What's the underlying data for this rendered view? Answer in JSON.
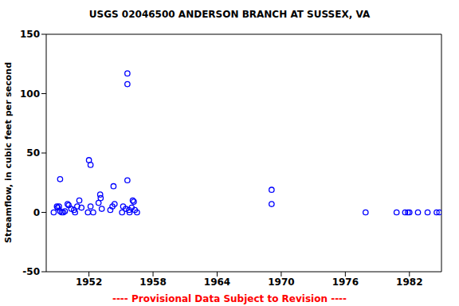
{
  "chart_data": {
    "type": "scatter",
    "title": "USGS 02046500 ANDERSON BRANCH AT SUSSEX, VA",
    "ylabel": "Streamflow, in cubic feet per second",
    "annotations": [
      "---- Provisional Data Subject to Revision ----"
    ],
    "x": [
      1948.7,
      1949.0,
      1949.07,
      1949.2,
      1949.3,
      1949.3,
      1949.45,
      1949.6,
      1949.75,
      1950.0,
      1950.1,
      1950.35,
      1950.6,
      1950.7,
      1950.9,
      1951.1,
      1951.3,
      1951.9,
      1952.0,
      1952.15,
      1952.15,
      1952.4,
      1952.9,
      1953.05,
      1953.1,
      1953.2,
      1954.0,
      1954.2,
      1954.3,
      1954.4,
      1955.1,
      1955.2,
      1955.45,
      1955.6,
      1955.6,
      1955.6,
      1955.75,
      1955.8,
      1956.0,
      1956.1,
      1956.2,
      1956.3,
      1956.5,
      1969.1,
      1969.1,
      1977.9,
      1980.8,
      1981.6,
      1981.85,
      1982.0,
      1982.8,
      1983.7,
      1984.55,
      1984.8
    ],
    "values": [
      0,
      5,
      4,
      5,
      28,
      1,
      0,
      0,
      1,
      7,
      6,
      3,
      2,
      0,
      5,
      10,
      4,
      0,
      44,
      40,
      5,
      0,
      8,
      15,
      12,
      3,
      2,
      5,
      22,
      7,
      0,
      5,
      3,
      117,
      108,
      27,
      2,
      0,
      4,
      10,
      9,
      2,
      0,
      19,
      7,
      0,
      0,
      0,
      0,
      0,
      0,
      0,
      0,
      0
    ],
    "color": "#0000ff",
    "marker": "circle",
    "xlim": [
      1948,
      1985
    ],
    "xticks": [
      1952,
      1958,
      1964,
      1970,
      1976,
      1982
    ],
    "ylim": [
      -50,
      150
    ],
    "yticks": [
      -50,
      0,
      50,
      100,
      150
    ],
    "grid": false
  }
}
